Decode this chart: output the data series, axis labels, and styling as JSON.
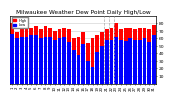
{
  "title": "Milwaukee Weather Dew Point Daily High/Low",
  "title_fontsize": 4.2,
  "background_color": "#ffffff",
  "plot_bg_color": "#ffffff",
  "days": [
    1,
    2,
    3,
    4,
    5,
    6,
    7,
    8,
    9,
    10,
    11,
    12,
    13,
    14,
    15,
    16,
    17,
    18,
    19,
    20,
    21,
    22,
    23,
    24,
    25,
    26,
    27,
    28,
    29,
    30,
    31
  ],
  "high": [
    80,
    68,
    72,
    72,
    74,
    76,
    72,
    76,
    74,
    70,
    72,
    74,
    72,
    60,
    62,
    68,
    54,
    60,
    64,
    68,
    72,
    74,
    80,
    72,
    74,
    74,
    72,
    74,
    74,
    72,
    78
  ],
  "low": [
    65,
    60,
    62,
    62,
    64,
    64,
    60,
    62,
    62,
    58,
    60,
    62,
    55,
    44,
    38,
    52,
    30,
    22,
    42,
    50,
    58,
    58,
    62,
    58,
    56,
    60,
    58,
    58,
    60,
    55,
    64
  ],
  "high_color": "#ff0000",
  "low_color": "#0000ff",
  "ylim": [
    0,
    90
  ],
  "yticks": [
    10,
    20,
    30,
    40,
    50,
    60,
    70,
    80
  ],
  "ytick_labels": [
    "10",
    "20",
    "30",
    "40",
    "50",
    "60",
    "70",
    "80"
  ],
  "ytick_fontsize": 3.2,
  "xtick_fontsize": 2.8,
  "xtick_labels": [
    "1",
    "2",
    "3",
    "4",
    "5",
    "6",
    "7",
    "8",
    "9",
    "10",
    "11",
    "12",
    "13",
    "14",
    "15",
    "16",
    "17",
    "18",
    "19",
    "20",
    "21",
    "22",
    "23",
    "24",
    "25",
    "26",
    "27",
    "28",
    "29",
    "30",
    "31"
  ],
  "grid_color": "#cccccc",
  "dashed_xcols": [
    20,
    21,
    22
  ],
  "legend_labels": [
    "High",
    "Low"
  ],
  "legend_colors": [
    "#ff0000",
    "#0000ff"
  ]
}
